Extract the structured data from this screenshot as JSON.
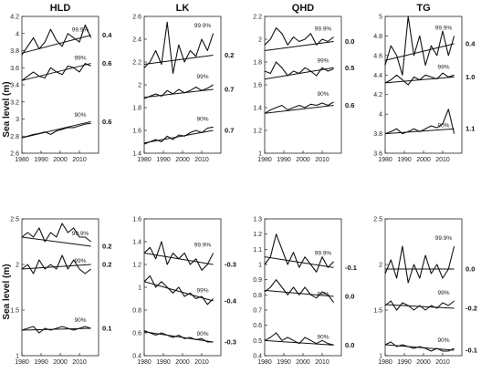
{
  "figure": {
    "ylabel": "Sea level (m)"
  },
  "chart_data": [
    {
      "type": "line",
      "title": "HLD",
      "ylabel": "Sea level (m)",
      "xlim": [
        1980,
        2020
      ],
      "ylim": [
        2.6,
        4.2
      ],
      "xticks": [
        "1980",
        "1990",
        "2000",
        "2010"
      ],
      "yticks": [
        "2.6",
        "2.8",
        "3",
        "3.2",
        "3.4",
        "3.6",
        "3.8",
        "4",
        "4.2"
      ],
      "series": [
        {
          "name": "99.9%",
          "x": [
            1980,
            1983,
            1986,
            1989,
            1992,
            1995,
            1998,
            2001,
            2004,
            2007,
            2010,
            2013,
            2016
          ],
          "values": [
            3.75,
            3.85,
            3.95,
            3.82,
            3.9,
            4.05,
            3.92,
            3.85,
            4.0,
            3.95,
            3.9,
            4.1,
            3.95
          ],
          "trend": [
            3.77,
            3.98
          ],
          "slope_label": "0.4"
        },
        {
          "name": "99%",
          "x": [
            1980,
            1983,
            1986,
            1989,
            1992,
            1995,
            1998,
            2001,
            2004,
            2007,
            2010,
            2013,
            2016
          ],
          "values": [
            3.45,
            3.5,
            3.55,
            3.5,
            3.48,
            3.6,
            3.55,
            3.52,
            3.62,
            3.6,
            3.55,
            3.65,
            3.62
          ],
          "trend": [
            3.45,
            3.65
          ],
          "slope_label": "0.6"
        },
        {
          "name": "90%",
          "x": [
            1980,
            1983,
            1986,
            1989,
            1992,
            1995,
            1998,
            2001,
            2004,
            2007,
            2010,
            2013,
            2016
          ],
          "values": [
            2.78,
            2.8,
            2.82,
            2.83,
            2.85,
            2.82,
            2.86,
            2.88,
            2.9,
            2.9,
            2.92,
            2.94,
            2.95
          ],
          "trend": [
            2.78,
            2.97
          ],
          "slope_label": "0.6"
        }
      ]
    },
    {
      "type": "line",
      "title": "LK",
      "xlim": [
        1980,
        2020
      ],
      "ylim": [
        1.4,
        2.6
      ],
      "xticks": [
        "1980",
        "1990",
        "2000",
        "2010"
      ],
      "yticks": [
        "1.4",
        "1.6",
        "1.8",
        "2",
        "2.2",
        "2.4",
        "2.6"
      ],
      "series": [
        {
          "name": "99.9%",
          "x": [
            1980,
            1983,
            1986,
            1989,
            1992,
            1995,
            1998,
            2001,
            2004,
            2007,
            2010,
            2013,
            2016
          ],
          "values": [
            2.15,
            2.2,
            2.3,
            2.18,
            2.55,
            2.1,
            2.35,
            2.2,
            2.3,
            2.25,
            2.4,
            2.3,
            2.45
          ],
          "trend": [
            2.18,
            2.26
          ],
          "slope_label": "0.2"
        },
        {
          "name": "99%",
          "x": [
            1980,
            1983,
            1986,
            1989,
            1992,
            1995,
            1998,
            2001,
            2004,
            2007,
            2010,
            2013,
            2016
          ],
          "values": [
            1.88,
            1.9,
            1.92,
            1.9,
            1.95,
            1.92,
            1.96,
            1.93,
            1.95,
            1.98,
            1.95,
            1.97,
            2.0
          ],
          "trend": [
            1.89,
            1.96
          ],
          "slope_label": "0.7"
        },
        {
          "name": "90%",
          "x": [
            1980,
            1983,
            1986,
            1989,
            1992,
            1995,
            1998,
            2001,
            2004,
            2007,
            2010,
            2013,
            2016
          ],
          "values": [
            1.48,
            1.5,
            1.52,
            1.5,
            1.55,
            1.52,
            1.56,
            1.55,
            1.58,
            1.6,
            1.58,
            1.62,
            1.63
          ],
          "trend": [
            1.49,
            1.6
          ],
          "slope_label": "0.7"
        }
      ]
    },
    {
      "type": "line",
      "title": "QHD",
      "xlim": [
        1980,
        2020
      ],
      "ylim": [
        1.0,
        2.2
      ],
      "xticks": [
        "1980",
        "1990",
        "2000",
        "2010"
      ],
      "yticks": [
        "1",
        "1.2",
        "1.4",
        "1.6",
        "1.8",
        "2",
        "2.2"
      ],
      "series": [
        {
          "name": "99.9%",
          "x": [
            1980,
            1983,
            1986,
            1989,
            1992,
            1995,
            1998,
            2001,
            2004,
            2007,
            2010,
            2013,
            2016
          ],
          "values": [
            1.95,
            2.0,
            2.1,
            2.05,
            1.95,
            2.02,
            1.98,
            2.0,
            2.05,
            1.95,
            2.0,
            1.98,
            2.02
          ],
          "trend": [
            1.9,
            1.98
          ],
          "slope_label": "0.0"
        },
        {
          "name": "99%",
          "x": [
            1980,
            1983,
            1986,
            1989,
            1992,
            1995,
            1998,
            2001,
            2004,
            2007,
            2010,
            2013,
            2016
          ],
          "values": [
            1.72,
            1.7,
            1.8,
            1.75,
            1.68,
            1.72,
            1.7,
            1.75,
            1.72,
            1.68,
            1.75,
            1.72,
            1.74
          ],
          "trend": [
            1.65,
            1.75
          ],
          "slope_label": "0.5"
        },
        {
          "name": "90%",
          "x": [
            1980,
            1983,
            1986,
            1989,
            1992,
            1995,
            1998,
            2001,
            2004,
            2007,
            2010,
            2013,
            2016
          ],
          "values": [
            1.35,
            1.38,
            1.4,
            1.42,
            1.38,
            1.4,
            1.42,
            1.4,
            1.43,
            1.42,
            1.44,
            1.42,
            1.45
          ],
          "trend": [
            1.35,
            1.42
          ],
          "slope_label": "0.6"
        }
      ]
    },
    {
      "type": "line",
      "title": "TG",
      "xlim": [
        1980,
        2020
      ],
      "ylim": [
        3.6,
        5.0
      ],
      "xticks": [
        "1980",
        "1990",
        "2000",
        "2010"
      ],
      "yticks": [
        "3.6",
        "3.8",
        "4",
        "4.2",
        "4.4",
        "4.6",
        "4.8",
        "5"
      ],
      "series": [
        {
          "name": "99.9%",
          "x": [
            1980,
            1983,
            1986,
            1989,
            1992,
            1995,
            1998,
            2001,
            2004,
            2007,
            2010,
            2013,
            2016
          ],
          "values": [
            4.5,
            4.7,
            4.6,
            4.4,
            5.0,
            4.6,
            4.8,
            4.5,
            4.7,
            4.6,
            4.85,
            4.6,
            4.8
          ],
          "trend": [
            4.55,
            4.72
          ],
          "slope_label": "0.4"
        },
        {
          "name": "99%",
          "x": [
            1980,
            1983,
            1986,
            1989,
            1992,
            1995,
            1998,
            2001,
            2004,
            2007,
            2010,
            2013,
            2016
          ],
          "values": [
            4.32,
            4.35,
            4.4,
            4.35,
            4.3,
            4.38,
            4.35,
            4.4,
            4.38,
            4.36,
            4.42,
            4.38,
            4.4
          ],
          "trend": [
            4.32,
            4.38
          ],
          "slope_label": "1.0"
        },
        {
          "name": "90%",
          "x": [
            1980,
            1983,
            1986,
            1989,
            1992,
            1995,
            1998,
            2001,
            2004,
            2007,
            2010,
            2013,
            2016
          ],
          "values": [
            3.8,
            3.82,
            3.85,
            3.8,
            3.82,
            3.85,
            3.82,
            3.85,
            3.88,
            3.86,
            3.9,
            4.05,
            3.8
          ],
          "trend": [
            3.8,
            3.85
          ],
          "slope_label": "1.1"
        }
      ]
    },
    {
      "type": "line",
      "title": "",
      "ylabel": "Sea level (m)",
      "xlim": [
        1980,
        2020
      ],
      "ylim": [
        1.0,
        2.5
      ],
      "xticks": [
        "1980",
        "1990",
        "2000",
        "2010"
      ],
      "yticks": [
        "1",
        "1.5",
        "2",
        "2.5"
      ],
      "series": [
        {
          "name": "99.9%",
          "x": [
            1980,
            1983,
            1986,
            1989,
            1992,
            1995,
            1998,
            2001,
            2004,
            2007,
            2010,
            2013,
            2016
          ],
          "values": [
            2.3,
            2.35,
            2.3,
            2.4,
            2.25,
            2.35,
            2.3,
            2.45,
            2.35,
            2.4,
            2.3,
            2.3,
            2.25
          ],
          "trend": [
            2.3,
            2.2
          ],
          "slope_label": "0.2"
        },
        {
          "name": "99%",
          "x": [
            1980,
            1983,
            1986,
            1989,
            1992,
            1995,
            1998,
            2001,
            2004,
            2007,
            2010,
            2013,
            2016
          ],
          "values": [
            1.95,
            2.0,
            1.9,
            2.05,
            1.95,
            2.0,
            1.95,
            2.1,
            1.95,
            2.05,
            1.95,
            1.9,
            1.95
          ],
          "trend": [
            1.95,
            2.0
          ],
          "slope_label": "0.2"
        },
        {
          "name": "90%",
          "x": [
            1980,
            1983,
            1986,
            1989,
            1992,
            1995,
            1998,
            2001,
            2004,
            2007,
            2010,
            2013,
            2016
          ],
          "values": [
            1.28,
            1.3,
            1.32,
            1.25,
            1.3,
            1.28,
            1.3,
            1.32,
            1.3,
            1.28,
            1.3,
            1.32,
            1.3
          ],
          "trend": [
            1.28,
            1.3
          ],
          "slope_label": "0.1"
        }
      ]
    },
    {
      "type": "line",
      "title": "",
      "xlim": [
        1980,
        2020
      ],
      "ylim": [
        0.4,
        1.6
      ],
      "xticks": [
        "1980",
        "1990",
        "2000",
        "2010"
      ],
      "yticks": [
        "0.4",
        "0.6",
        "0.8",
        "1",
        "1.2",
        "1.4",
        "1.6"
      ],
      "series": [
        {
          "name": "99.9%",
          "x": [
            1980,
            1983,
            1986,
            1989,
            1992,
            1995,
            1998,
            2001,
            2004,
            2007,
            2010,
            2013,
            2016
          ],
          "values": [
            1.3,
            1.35,
            1.25,
            1.4,
            1.2,
            1.3,
            1.25,
            1.3,
            1.2,
            1.25,
            1.15,
            1.2,
            1.3
          ],
          "trend": [
            1.3,
            1.2
          ],
          "slope_label": "-0.3"
        },
        {
          "name": "99%",
          "x": [
            1980,
            1983,
            1986,
            1989,
            1992,
            1995,
            1998,
            2001,
            2004,
            2007,
            2010,
            2013,
            2016
          ],
          "values": [
            1.05,
            1.1,
            1.0,
            1.05,
            1.0,
            0.95,
            1.0,
            0.92,
            0.95,
            0.9,
            0.92,
            0.85,
            0.9
          ],
          "trend": [
            1.05,
            0.88
          ],
          "slope_label": "-0.4"
        },
        {
          "name": "90%",
          "x": [
            1980,
            1983,
            1986,
            1989,
            1992,
            1995,
            1998,
            2001,
            2004,
            2007,
            2010,
            2013,
            2016
          ],
          "values": [
            0.62,
            0.6,
            0.58,
            0.6,
            0.58,
            0.56,
            0.58,
            0.55,
            0.56,
            0.54,
            0.55,
            0.52,
            0.52
          ],
          "trend": [
            0.61,
            0.52
          ],
          "slope_label": "-0.3"
        }
      ]
    },
    {
      "type": "line",
      "title": "",
      "xlim": [
        1980,
        2020
      ],
      "ylim": [
        0.4,
        1.3
      ],
      "xticks": [
        "1980",
        "1990",
        "2000",
        "2010"
      ],
      "yticks": [
        "0.4",
        "0.5",
        "0.6",
        "0.7",
        "0.8",
        "0.9",
        "1",
        "1.1",
        "1.2",
        "1.3"
      ],
      "series": [
        {
          "name": "99.9%",
          "x": [
            1980,
            1983,
            1986,
            1989,
            1992,
            1995,
            1998,
            2001,
            2004,
            2007,
            2010,
            2013,
            2016
          ],
          "values": [
            1.0,
            1.05,
            1.2,
            1.1,
            1.0,
            1.08,
            0.98,
            1.05,
            1.0,
            0.95,
            1.05,
            0.98,
            1.02
          ],
          "trend": [
            1.05,
            0.98
          ],
          "slope_label": "-0.1"
        },
        {
          "name": "99%",
          "x": [
            1980,
            1983,
            1986,
            1989,
            1992,
            1995,
            1998,
            2001,
            2004,
            2007,
            2010,
            2013,
            2016
          ],
          "values": [
            0.82,
            0.85,
            0.9,
            0.85,
            0.8,
            0.85,
            0.8,
            0.85,
            0.8,
            0.78,
            0.82,
            0.8,
            0.75
          ],
          "trend": [
            0.83,
            0.79
          ],
          "slope_label": "0.0"
        },
        {
          "name": "90%",
          "x": [
            1980,
            1983,
            1986,
            1989,
            1992,
            1995,
            1998,
            2001,
            2004,
            2007,
            2010,
            2013,
            2016
          ],
          "values": [
            0.5,
            0.52,
            0.55,
            0.5,
            0.52,
            0.5,
            0.48,
            0.52,
            0.5,
            0.48,
            0.5,
            0.48,
            0.47
          ],
          "trend": [
            0.5,
            0.47
          ],
          "slope_label": "0.0"
        }
      ]
    },
    {
      "type": "line",
      "title": "",
      "xlim": [
        1980,
        2020
      ],
      "ylim": [
        1.0,
        2.5
      ],
      "xticks": [
        "1980",
        "1990",
        "2000",
        "2010"
      ],
      "yticks": [
        "1",
        "1.5",
        "2",
        "2.5"
      ],
      "series": [
        {
          "name": "99.9%",
          "x": [
            1980,
            1983,
            1986,
            1989,
            1992,
            1995,
            1998,
            2001,
            2004,
            2007,
            2010,
            2013,
            2016
          ],
          "values": [
            1.9,
            2.05,
            1.85,
            2.2,
            1.8,
            2.0,
            1.85,
            2.1,
            1.9,
            2.0,
            1.85,
            1.95,
            2.2
          ],
          "trend": [
            1.95,
            1.95
          ],
          "slope_label": "0.0"
        },
        {
          "name": "99%",
          "x": [
            1980,
            1983,
            1986,
            1989,
            1992,
            1995,
            1998,
            2001,
            2004,
            2007,
            2010,
            2013,
            2016
          ],
          "values": [
            1.55,
            1.6,
            1.5,
            1.58,
            1.55,
            1.5,
            1.55,
            1.5,
            1.55,
            1.52,
            1.58,
            1.55,
            1.6
          ],
          "trend": [
            1.56,
            1.52
          ],
          "slope_label": "-0.2"
        },
        {
          "name": "90%",
          "x": [
            1980,
            1983,
            1986,
            1989,
            1992,
            1995,
            1998,
            2001,
            2004,
            2007,
            2010,
            2013,
            2016
          ],
          "values": [
            1.12,
            1.15,
            1.1,
            1.12,
            1.1,
            1.08,
            1.1,
            1.08,
            1.05,
            1.08,
            1.05,
            1.05,
            1.08
          ],
          "trend": [
            1.12,
            1.06
          ],
          "slope_label": "-0.1"
        }
      ]
    }
  ]
}
